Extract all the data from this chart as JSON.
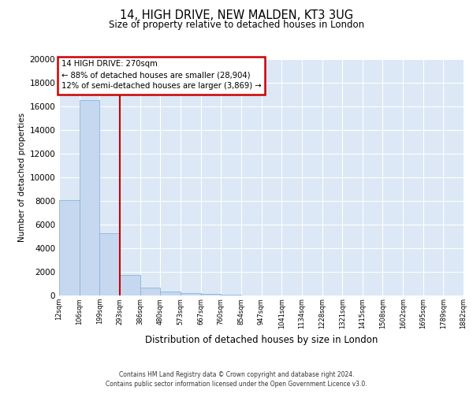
{
  "title1": "14, HIGH DRIVE, NEW MALDEN, KT3 3UG",
  "title2": "Size of property relative to detached houses in London",
  "xlabel": "Distribution of detached houses by size in London",
  "ylabel": "Number of detached properties",
  "bins": [
    12,
    106,
    199,
    293,
    386,
    480,
    573,
    667,
    760,
    854,
    947,
    1041,
    1134,
    1228,
    1321,
    1415,
    1508,
    1602,
    1695,
    1789,
    1882
  ],
  "bin_labels": [
    "12sqm",
    "106sqm",
    "199sqm",
    "293sqm",
    "386sqm",
    "480sqm",
    "573sqm",
    "667sqm",
    "760sqm",
    "854sqm",
    "947sqm",
    "1041sqm",
    "1134sqm",
    "1228sqm",
    "1321sqm",
    "1415sqm",
    "1508sqm",
    "1602sqm",
    "1695sqm",
    "1789sqm",
    "1882sqm"
  ],
  "bar_heights": [
    8100,
    16500,
    5300,
    1750,
    700,
    330,
    190,
    130,
    90,
    0,
    0,
    0,
    0,
    0,
    0,
    0,
    0,
    0,
    0,
    0
  ],
  "bar_color": "#c5d8f0",
  "bar_edge_color": "#8ab4d8",
  "vline_x": 293,
  "vline_color": "#cc0000",
  "annotation_line1": "14 HIGH DRIVE: 270sqm",
  "annotation_line2": "← 88% of detached houses are smaller (28,904)",
  "annotation_line3": "12% of semi-detached houses are larger (3,869) →",
  "annotation_box_color": "#cc0000",
  "ylim": [
    0,
    20000
  ],
  "yticks": [
    0,
    2000,
    4000,
    6000,
    8000,
    10000,
    12000,
    14000,
    16000,
    18000,
    20000
  ],
  "background_color": "#dce8f5",
  "grid_color": "#ffffff",
  "footer1": "Contains HM Land Registry data © Crown copyright and database right 2024.",
  "footer2": "Contains public sector information licensed under the Open Government Licence v3.0."
}
